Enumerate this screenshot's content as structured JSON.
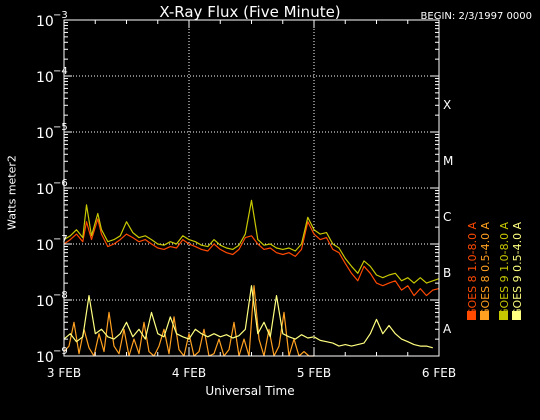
{
  "header": {
    "title": "X-Ray Flux (Five Minute)",
    "begin": "BEGIN: 2/3/1997 0000"
  },
  "colors": {
    "background": "#000000",
    "axis": "#ffffff",
    "grid": "#ffffff",
    "goes8_long": "#ff4a00",
    "goes8_short": "#ffa020",
    "goes9_long": "#c8c800",
    "goes9_short": "#ffff80"
  },
  "legend": {
    "placement": "right, vertical",
    "items": [
      {
        "label": "GOES 8 1.0-8.0 A",
        "color": "#ff4a00"
      },
      {
        "label": "GOES 8 0.5-4.0 A",
        "color": "#ffa020"
      },
      {
        "label": "GOES 9 1.0-8.0 A",
        "color": "#c8c800"
      },
      {
        "label": "GOES 9 0.5-4.0 A",
        "color": "#ffff80"
      }
    ]
  },
  "chart_data": {
    "type": "line",
    "title": "X-Ray Flux (Five Minute)",
    "xlabel": "Universal Time",
    "ylabel": "Watts meter2",
    "y_scale": "log",
    "ylim": [
      1e-09,
      0.001
    ],
    "xlim": [
      0,
      3
    ],
    "x_unit": "days since 3 Feb 1997 00:00 UT",
    "x_ticks": [
      {
        "value": 0,
        "label": "3 FEB"
      },
      {
        "value": 1,
        "label": "4 FEB"
      },
      {
        "value": 2,
        "label": "5 FEB"
      },
      {
        "value": 3,
        "label": "6 FEB"
      }
    ],
    "y_ticks": [
      {
        "exp": -9,
        "label": "10",
        "sup": "−9"
      },
      {
        "exp": -8,
        "label": "10",
        "sup": "−8"
      },
      {
        "exp": -7,
        "label": "10",
        "sup": "−7"
      },
      {
        "exp": -6,
        "label": "10",
        "sup": "−6"
      },
      {
        "exp": -5,
        "label": "10",
        "sup": "−5"
      },
      {
        "exp": -4,
        "label": "10",
        "sup": "−4"
      },
      {
        "exp": -3,
        "label": "10",
        "sup": "−3"
      }
    ],
    "flare_classes": [
      {
        "label": "A",
        "exp": -8
      },
      {
        "label": "B",
        "exp": -7
      },
      {
        "label": "C",
        "exp": -6
      },
      {
        "label": "M",
        "exp": -5
      },
      {
        "label": "X",
        "exp": -4
      }
    ],
    "grid": true,
    "series": [
      {
        "name": "GOES 8 1.0-8.0 A",
        "color": "#ff4a00",
        "x": [
          0.0,
          0.05,
          0.1,
          0.15,
          0.18,
          0.22,
          0.27,
          0.3,
          0.35,
          0.4,
          0.45,
          0.5,
          0.55,
          0.6,
          0.65,
          0.7,
          0.75,
          0.8,
          0.85,
          0.9,
          0.95,
          1.0,
          1.05,
          1.1,
          1.15,
          1.2,
          1.25,
          1.3,
          1.35,
          1.4,
          1.45,
          1.5,
          1.55,
          1.6,
          1.65,
          1.7,
          1.75,
          1.8,
          1.85,
          1.9,
          1.95,
          2.0,
          2.05,
          2.1,
          2.15,
          2.2,
          2.25,
          2.3,
          2.35,
          2.4,
          2.45,
          2.5,
          2.55,
          2.6,
          2.65,
          2.7,
          2.75,
          2.8,
          2.85,
          2.9,
          2.95,
          3.0
        ],
        "y": [
          1e-07,
          1.2e-07,
          1.5e-07,
          1.1e-07,
          2.5e-07,
          1.2e-07,
          2.8e-07,
          1.5e-07,
          9e-08,
          1e-07,
          1.2e-07,
          1.5e-07,
          1.3e-07,
          1.1e-07,
          1.2e-07,
          1e-07,
          8.5e-08,
          8e-08,
          9e-08,
          8.5e-08,
          1.2e-07,
          1e-07,
          9e-08,
          8e-08,
          7.5e-08,
          1e-07,
          8e-08,
          7e-08,
          6.5e-08,
          8e-08,
          1.3e-07,
          1.4e-07,
          1e-07,
          8e-08,
          8.5e-08,
          7e-08,
          6.5e-08,
          7e-08,
          6e-08,
          8e-08,
          2.5e-07,
          1.5e-07,
          1.2e-07,
          1.3e-07,
          8e-08,
          7e-08,
          4.5e-08,
          3e-08,
          2.2e-08,
          4e-08,
          3e-08,
          2e-08,
          1.8e-08,
          2e-08,
          2.2e-08,
          1.5e-08,
          1.8e-08,
          1.2e-08,
          1.6e-08,
          1.2e-08,
          1.5e-08,
          1.6e-08
        ]
      },
      {
        "name": "GOES 8 0.5-4.0 A",
        "color": "#ffa020",
        "x": [
          0.0,
          0.04,
          0.08,
          0.12,
          0.16,
          0.2,
          0.24,
          0.28,
          0.32,
          0.36,
          0.4,
          0.44,
          0.48,
          0.52,
          0.56,
          0.6,
          0.64,
          0.68,
          0.72,
          0.76,
          0.8,
          0.84,
          0.88,
          0.92,
          0.96,
          1.0,
          1.04,
          1.08,
          1.12,
          1.16,
          1.2,
          1.24,
          1.28,
          1.32,
          1.36,
          1.4,
          1.44,
          1.48,
          1.52,
          1.56,
          1.6,
          1.64,
          1.68,
          1.72,
          1.76,
          1.8,
          1.84,
          1.88,
          1.92,
          1.96,
          2.0
        ],
        "y": [
          1.2e-09,
          1.5e-09,
          4e-09,
          1.1e-09,
          3e-09,
          1.4e-09,
          1e-09,
          2.5e-09,
          1.2e-09,
          6e-09,
          1.5e-09,
          1.1e-09,
          3e-09,
          1e-09,
          2e-09,
          1.1e-09,
          4e-09,
          1.2e-09,
          1e-09,
          1.5e-09,
          3e-09,
          1.1e-09,
          5e-09,
          1.3e-09,
          1e-09,
          2.5e-09,
          1e-09,
          1.2e-09,
          3e-09,
          1e-09,
          1.1e-09,
          2e-09,
          1e-09,
          1.3e-09,
          4e-09,
          1e-09,
          2e-09,
          1e-09,
          1.8e-08,
          2e-09,
          1e-09,
          3e-09,
          1e-09,
          1.5e-09,
          6e-09,
          1e-09,
          2e-09,
          1e-09,
          1.2e-09,
          1e-09,
          1e-09
        ]
      },
      {
        "name": "GOES 9 1.0-8.0 A",
        "color": "#c8c800",
        "x": [
          0.0,
          0.05,
          0.1,
          0.15,
          0.18,
          0.22,
          0.27,
          0.3,
          0.35,
          0.4,
          0.45,
          0.5,
          0.55,
          0.6,
          0.65,
          0.7,
          0.75,
          0.8,
          0.85,
          0.9,
          0.95,
          1.0,
          1.05,
          1.1,
          1.15,
          1.2,
          1.25,
          1.3,
          1.35,
          1.4,
          1.45,
          1.5,
          1.55,
          1.6,
          1.65,
          1.7,
          1.75,
          1.8,
          1.85,
          1.9,
          1.95,
          2.0,
          2.05,
          2.1,
          2.15,
          2.2,
          2.25,
          2.3,
          2.35,
          2.4,
          2.45,
          2.5,
          2.55,
          2.6,
          2.65,
          2.7,
          2.75,
          2.8,
          2.85,
          2.9,
          2.95,
          3.0
        ],
        "y": [
          1.2e-07,
          1.4e-07,
          1.8e-07,
          1.3e-07,
          5e-07,
          1.4e-07,
          3.5e-07,
          1.8e-07,
          1.1e-07,
          1.2e-07,
          1.4e-07,
          2.5e-07,
          1.6e-07,
          1.3e-07,
          1.4e-07,
          1.2e-07,
          1e-07,
          9.5e-08,
          1.1e-07,
          1e-07,
          1.4e-07,
          1.2e-07,
          1.1e-07,
          9.5e-08,
          9e-08,
          1.2e-07,
          9.5e-08,
          8.5e-08,
          8e-08,
          9.5e-08,
          1.5e-07,
          6e-07,
          1.2e-07,
          9.5e-08,
          1e-07,
          8.5e-08,
          8e-08,
          8.5e-08,
          7.5e-08,
          1e-07,
          3e-07,
          1.8e-07,
          1.5e-07,
          1.6e-07,
          1e-07,
          8.5e-08,
          5.5e-08,
          4e-08,
          3e-08,
          5e-08,
          4e-08,
          2.8e-08,
          2.5e-08,
          2.8e-08,
          3e-08,
          2.2e-08,
          2.5e-08,
          2e-08,
          2.5e-08,
          2e-08,
          2.2e-08,
          2.4e-08
        ]
      },
      {
        "name": "GOES 9 0.5-4.0 A",
        "color": "#ffff80",
        "x": [
          0.0,
          0.05,
          0.1,
          0.15,
          0.2,
          0.25,
          0.3,
          0.35,
          0.4,
          0.45,
          0.5,
          0.55,
          0.6,
          0.65,
          0.7,
          0.75,
          0.8,
          0.85,
          0.9,
          0.95,
          1.0,
          1.05,
          1.1,
          1.15,
          1.2,
          1.25,
          1.3,
          1.35,
          1.4,
          1.45,
          1.5,
          1.55,
          1.6,
          1.65,
          1.7,
          1.75,
          1.8,
          1.85,
          1.9,
          1.95,
          2.0,
          2.05,
          2.1,
          2.15,
          2.2,
          2.25,
          2.3,
          2.35,
          2.4,
          2.45,
          2.5,
          2.55,
          2.6,
          2.65,
          2.7,
          2.75,
          2.8,
          2.85,
          2.9,
          2.95
        ],
        "y": [
          2e-09,
          2.5e-09,
          1.8e-09,
          2.2e-09,
          1.2e-08,
          2.5e-09,
          3e-09,
          2.2e-09,
          2e-09,
          2.5e-09,
          4e-09,
          2.2e-09,
          3e-09,
          2e-09,
          6e-09,
          2.5e-09,
          2.2e-09,
          5e-09,
          2.5e-09,
          2.2e-09,
          2e-09,
          3e-09,
          2.5e-09,
          2.2e-09,
          2.5e-09,
          2.2e-09,
          2.4e-09,
          2.1e-09,
          2.3e-09,
          3e-09,
          1.8e-08,
          2.5e-09,
          4e-09,
          2.2e-09,
          1.2e-08,
          2.5e-09,
          2.2e-09,
          2e-09,
          2.4e-09,
          2.1e-09,
          2.2e-09,
          1.9e-09,
          1.8e-09,
          1.7e-09,
          1.5e-09,
          1.6e-09,
          1.5e-09,
          1.6e-09,
          1.7e-09,
          2.5e-09,
          4.5e-09,
          2.5e-09,
          3.5e-09,
          2.5e-09,
          2e-09,
          1.8e-09,
          1.6e-09,
          1.5e-09,
          1.5e-09,
          1.4e-09
        ]
      }
    ]
  }
}
